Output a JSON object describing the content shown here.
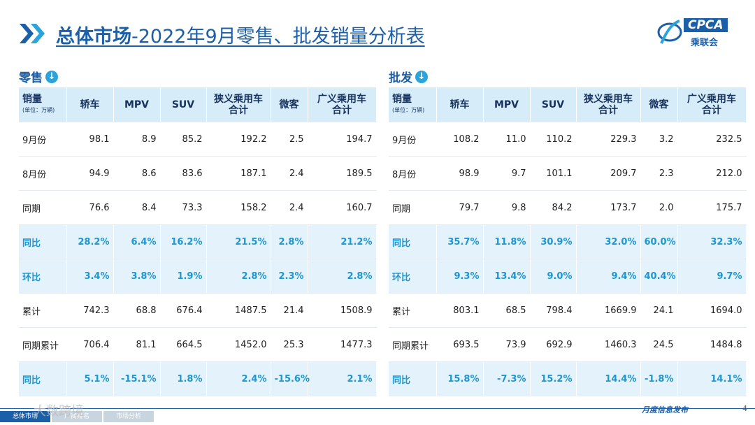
{
  "header": {
    "title_bold": "总体市场",
    "title_rest": "-2022年9月零售、批发销量分析表"
  },
  "logo": {
    "brand": "CPCA",
    "name": "乘联会"
  },
  "tables": [
    {
      "label": "零售",
      "unit_header": "销量",
      "unit": "(单位：万辆)",
      "columns": [
        "轿车",
        "MPV",
        "SUV",
        "狭义乘用车\n合计",
        "微客",
        "广义乘用车\n合计"
      ],
      "rows": [
        {
          "label": "9月份",
          "values": [
            "98.1",
            "8.9",
            "85.2",
            "192.2",
            "2.5",
            "194.7"
          ]
        },
        {
          "label": "8月份",
          "values": [
            "94.9",
            "8.6",
            "83.6",
            "187.1",
            "2.4",
            "189.5"
          ]
        },
        {
          "label": "同期",
          "values": [
            "76.6",
            "8.4",
            "73.3",
            "158.2",
            "2.4",
            "160.7"
          ]
        },
        {
          "label": "同比",
          "values": [
            "28.2%",
            "6.4%",
            "16.2%",
            "21.5%",
            "2.8%",
            "21.2%"
          ]
        },
        {
          "label": "环比",
          "values": [
            "3.4%",
            "3.8%",
            "1.9%",
            "2.8%",
            "2.3%",
            "2.8%"
          ]
        },
        {
          "label": "累计",
          "values": [
            "742.3",
            "68.8",
            "676.4",
            "1487.5",
            "21.4",
            "1508.9"
          ]
        },
        {
          "label": "同期累计",
          "values": [
            "706.4",
            "81.1",
            "664.5",
            "1452.0",
            "25.3",
            "1477.3"
          ]
        },
        {
          "label": "同比",
          "values": [
            "5.1%",
            "-15.1%",
            "1.8%",
            "2.4%",
            "-15.6%",
            "2.1%"
          ]
        }
      ]
    },
    {
      "label": "批发",
      "unit_header": "销量",
      "unit": "(单位：万辆)",
      "columns": [
        "轿车",
        "MPV",
        "SUV",
        "狭义乘用车\n合计",
        "微客",
        "广义乘用车\n合计"
      ],
      "rows": [
        {
          "label": "9月份",
          "values": [
            "108.2",
            "11.0",
            "110.2",
            "229.3",
            "3.2",
            "232.5"
          ]
        },
        {
          "label": "8月份",
          "values": [
            "98.9",
            "9.7",
            "101.1",
            "209.7",
            "2.3",
            "212.0"
          ]
        },
        {
          "label": "同期",
          "values": [
            "79.7",
            "9.8",
            "84.2",
            "173.7",
            "2.0",
            "175.7"
          ]
        },
        {
          "label": "同比",
          "values": [
            "35.7%",
            "11.8%",
            "30.9%",
            "32.0%",
            "60.0%",
            "32.3%"
          ]
        },
        {
          "label": "环比",
          "values": [
            "9.3%",
            "13.4%",
            "9.0%",
            "9.4%",
            "40.4%",
            "9.7%"
          ]
        },
        {
          "label": "累计",
          "values": [
            "803.1",
            "68.5",
            "798.4",
            "1669.9",
            "24.1",
            "1694.0"
          ]
        },
        {
          "label": "同期累计",
          "values": [
            "693.5",
            "73.9",
            "692.9",
            "1460.3",
            "24.5",
            "1484.8"
          ]
        },
        {
          "label": "同比",
          "values": [
            "15.8%",
            "-7.3%",
            "15.2%",
            "14.4%",
            "-1.8%",
            "14.1%"
          ]
        }
      ]
    }
  ],
  "footer": {
    "tabs": [
      "总体市场",
      "厂商排名",
      "市场分析"
    ],
    "watermark": "大数跨境",
    "right": "月度信息发布",
    "page": "4"
  }
}
